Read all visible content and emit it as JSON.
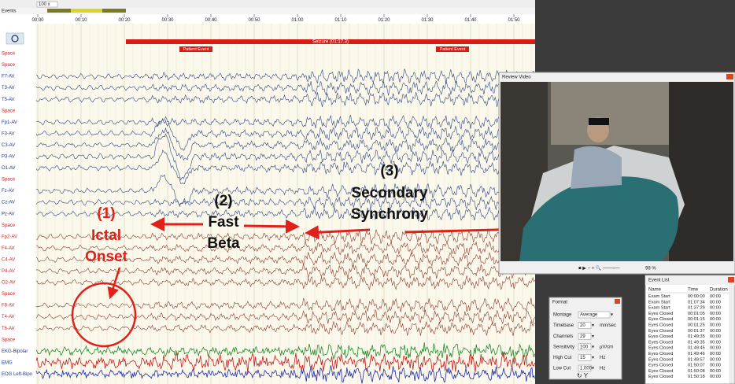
{
  "toolbar": {
    "zoom": "100 x"
  },
  "timeline": {
    "events_label": "Events",
    "times": [
      "00:00",
      "00:10",
      "00:20",
      "00:30",
      "00:40",
      "00:50",
      "01:00",
      "01:10",
      "01:20",
      "01:30",
      "01:40",
      "01:50"
    ],
    "seizure": "Seizure (01:17.3)",
    "patient_events": [
      "Patient Event",
      "Patient Event"
    ]
  },
  "channels": [
    "Space",
    "Space",
    "F7-AV",
    "T3-AV",
    "T5-AV",
    "Space",
    "Fp1-AV",
    "F3-AV",
    "C3-AV",
    "P3-AV",
    "O1-AV",
    "Space",
    "Fz-AV",
    "Cz-AV",
    "Pz-AV",
    "Space",
    "Fp2-AV",
    "F4-AV",
    "C4-AV",
    "P4-AV",
    "O2-AV",
    "Space",
    "F8-AV",
    "T4-AV",
    "T6-AV",
    "Space",
    "EKG-Bipolar",
    "EMG",
    "EOG Left-Bipo"
  ],
  "annotations": {
    "ictal_onset": {
      "number": "(1)",
      "lines": [
        "Ictal",
        "Onset"
      ]
    },
    "fast_beta": {
      "number": "(2)",
      "lines": [
        "Fast",
        "Beta"
      ]
    },
    "secondary_synchrony": {
      "number": "(3)",
      "lines": [
        "Secondary",
        "Synchrony"
      ]
    }
  },
  "review_video": {
    "title": "Review Video",
    "zoom": "98 %"
  },
  "format": {
    "title": "Format",
    "fields": [
      {
        "label": "Montage",
        "value": "Average"
      },
      {
        "label": "Timebase",
        "value": "20",
        "unit": "mm/sec"
      },
      {
        "label": "Channels",
        "value": "29"
      },
      {
        "label": "Sensitivity",
        "value": "100",
        "unit": "µV/cm"
      },
      {
        "label": "High Cut",
        "value": "15",
        "unit": "Hz"
      },
      {
        "label": "Low Cut",
        "value": "1.000",
        "unit": "Hz"
      }
    ]
  },
  "event_list": {
    "title": "Event List",
    "columns": [
      "Name",
      "Time",
      "Duration"
    ],
    "rows": [
      [
        "Exam Start",
        "00:00:00",
        "00:00"
      ],
      [
        "Exam Start",
        "01:07:34",
        "00:00"
      ],
      [
        "Exam Start",
        "01:37:29",
        "00:00"
      ],
      [
        "Eyes Closed",
        "00:01:05",
        "00:00"
      ],
      [
        "Eyes Closed",
        "00:01:15",
        "00:00"
      ],
      [
        "Eyes Closed",
        "00:01:25",
        "00:00"
      ],
      [
        "Eyes Closed",
        "00:01:37",
        "00:00"
      ],
      [
        "Eyes Closed",
        "01:49:35",
        "00:00"
      ],
      [
        "Eyes Closed",
        "01:49:35",
        "00:00"
      ],
      [
        "Eyes Closed",
        "01:49:45",
        "00:00"
      ],
      [
        "Eyes Closed",
        "01:49:46",
        "00:00"
      ],
      [
        "Eyes Closed",
        "01:49:57",
        "00:00"
      ],
      [
        "Eyes Closed",
        "01:50:07",
        "00:00"
      ],
      [
        "Eyes Closed",
        "01:50:08",
        "00:00"
      ],
      [
        "Eyes Closed",
        "01:50:18",
        "00:00"
      ]
    ]
  }
}
